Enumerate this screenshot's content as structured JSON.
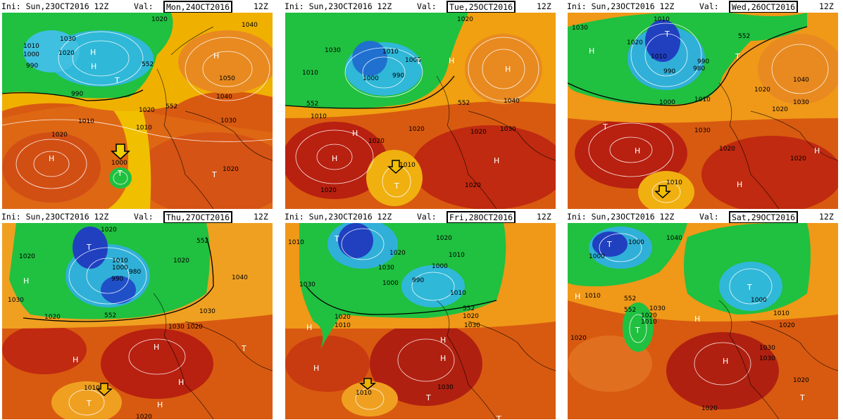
{
  "panels": [
    {
      "init_label": "Ini: Sun,23OCT2016 12Z",
      "val_label": "Val:",
      "valid_date": "Mon,24OCT2016",
      "valid_hour": "12Z",
      "isobars": [
        "1030",
        "1020",
        "1000",
        "990",
        "1010",
        "1020",
        "990",
        "552",
        "1050",
        "1040",
        "1020",
        "1010",
        "552",
        "1030",
        "1010",
        "1020",
        "1000",
        "1020",
        "1040"
      ],
      "centers": [
        "H",
        "H",
        "T",
        "H",
        "H",
        "T",
        "T"
      ],
      "colors": {
        "deep_low": "#2040c0",
        "low": "#20a0e0",
        "mid": "#20c040",
        "warm": "#f0c000",
        "hot": "#e06010",
        "peak": "#a01010"
      }
    },
    {
      "init_label": "Ini: Sun,23OCT2016 12Z",
      "val_label": "Val:",
      "valid_date": "Tue,25OCT2016",
      "valid_hour": "12Z",
      "isobars": [
        "1020",
        "1030",
        "1010",
        "1010",
        "990",
        "1000",
        "1000",
        "552",
        "1010",
        "1020",
        "1040",
        "1020",
        "1030",
        "1020",
        "1020",
        "552",
        "1010",
        "1020"
      ],
      "centers": [
        "H",
        "H",
        "H",
        "T",
        "H",
        "H",
        "T"
      ],
      "colors": {
        "deep_low": "#2040c0",
        "low": "#20a0e0",
        "mid": "#20c040",
        "warm": "#f0c000",
        "hot": "#e06010",
        "peak": "#a01010"
      }
    },
    {
      "init_label": "Ini: Sun,23OCT2016 12Z",
      "val_label": "Val:",
      "valid_date": "Wed,26OCT2016",
      "valid_hour": "12Z",
      "isobars": [
        "1030",
        "1010",
        "1020",
        "552",
        "1010",
        "990",
        "990",
        "980",
        "1000",
        "1010",
        "1020",
        "1040",
        "1020",
        "1030",
        "1030",
        "1020",
        "1010",
        "1020"
      ],
      "centers": [
        "T",
        "H",
        "T",
        "H",
        "H",
        "T",
        "H"
      ],
      "colors": {
        "deep_low": "#2040c0",
        "low": "#20a0e0",
        "mid": "#20c040",
        "warm": "#f0c000",
        "hot": "#e06010",
        "peak": "#a01010"
      }
    },
    {
      "init_label": "Ini: Sun,23OCT2016 12Z",
      "val_label": "Val:",
      "valid_date": "Thu,27OCT2016",
      "valid_hour": "12Z",
      "isobars": [
        "1020",
        "1020",
        "552",
        "1010",
        "1000",
        "990",
        "980",
        "1020",
        "1040",
        "1030",
        "1020",
        "552",
        "1030",
        "1020",
        "1030",
        "1010",
        "1020"
      ],
      "centers": [
        "T",
        "H",
        "H",
        "T",
        "H",
        "H",
        "T",
        "H"
      ],
      "colors": {
        "deep_low": "#2040c0",
        "low": "#20a0e0",
        "mid": "#20c040",
        "warm": "#f0c000",
        "hot": "#e06010",
        "peak": "#a01010"
      }
    },
    {
      "init_label": "Ini: Sun,23OCT2016 12Z",
      "val_label": "Val:",
      "valid_date": "Fri,28OCT2016",
      "valid_hour": "12Z",
      "isobars": [
        "1010",
        "1020",
        "1030",
        "1010",
        "1000",
        "990",
        "1000",
        "1020",
        "1010",
        "1030",
        "1020",
        "1010",
        "552",
        "1020",
        "1030",
        "1010",
        "1030"
      ],
      "centers": [
        "T",
        "H",
        "H",
        "H",
        "H",
        "T",
        "T"
      ],
      "colors": {
        "deep_low": "#2040c0",
        "low": "#20a0e0",
        "mid": "#20c040",
        "warm": "#f0c000",
        "hot": "#e06010",
        "peak": "#a01010"
      }
    },
    {
      "init_label": "Ini: Sun,23OCT2016 12Z",
      "val_label": "Val:",
      "valid_date": "Sat,29OCT2016",
      "valid_hour": "12Z",
      "isobars": [
        "1000",
        "1040",
        "1000",
        "552",
        "1010",
        "1030",
        "1020",
        "1010",
        "1000",
        "1010",
        "1020",
        "552",
        "1030",
        "1030",
        "1020",
        "1020",
        "1020"
      ],
      "centers": [
        "T",
        "T",
        "H",
        "H",
        "T",
        "H",
        "T"
      ],
      "colors": {
        "deep_low": "#2040c0",
        "low": "#20a0e0",
        "mid": "#20c040",
        "warm": "#f0c000",
        "hot": "#e06010",
        "peak": "#a01010"
      }
    }
  ]
}
